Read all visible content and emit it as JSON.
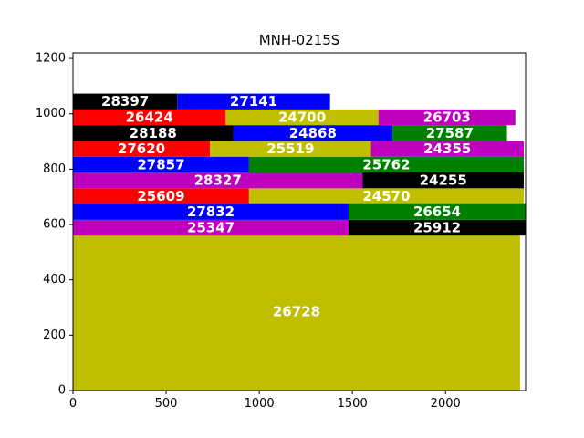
{
  "chart_data": {
    "type": "bar",
    "title": "MNH-0215S",
    "xlabel": "",
    "ylabel": "",
    "xlim": [
      0,
      2430
    ],
    "ylim": [
      0,
      1220
    ],
    "xticks": [
      0,
      500,
      1000,
      1500,
      2000
    ],
    "yticks": [
      0,
      200,
      400,
      600,
      800,
      1000,
      1200
    ],
    "grid": false,
    "colors": {
      "olive": "#bfbf00",
      "black": "#000000",
      "blue": "#0000ff",
      "red": "#ff0000",
      "green": "#008000",
      "magenta": "#bf00bf"
    },
    "rectangles": [
      {
        "label": "26728",
        "x": 0,
        "y": 0,
        "width": 2400,
        "height": 570,
        "color": "olive"
      },
      {
        "label": "25347",
        "x": 0,
        "y": 560,
        "width": 1480,
        "height": 57,
        "color": "magenta"
      },
      {
        "label": "25912",
        "x": 1480,
        "y": 560,
        "width": 950,
        "height": 57,
        "color": "black"
      },
      {
        "label": "27832",
        "x": 0,
        "y": 617,
        "width": 1480,
        "height": 57,
        "color": "blue"
      },
      {
        "label": "26654",
        "x": 1480,
        "y": 617,
        "width": 950,
        "height": 57,
        "color": "green"
      },
      {
        "label": "25609",
        "x": 0,
        "y": 674,
        "width": 945,
        "height": 57,
        "color": "red"
      },
      {
        "label": "24570",
        "x": 945,
        "y": 674,
        "width": 1475,
        "height": 57,
        "color": "olive"
      },
      {
        "label": "28327",
        "x": 0,
        "y": 731,
        "width": 1555,
        "height": 57,
        "color": "magenta"
      },
      {
        "label": "24255",
        "x": 1555,
        "y": 731,
        "width": 865,
        "height": 57,
        "color": "black"
      },
      {
        "label": "27857",
        "x": 0,
        "y": 788,
        "width": 945,
        "height": 57,
        "color": "blue"
      },
      {
        "label": "25762",
        "x": 945,
        "y": 788,
        "width": 1475,
        "height": 57,
        "color": "green"
      },
      {
        "label": "27620",
        "x": 0,
        "y": 845,
        "width": 735,
        "height": 57,
        "color": "red"
      },
      {
        "label": "25519",
        "x": 735,
        "y": 845,
        "width": 865,
        "height": 57,
        "color": "olive"
      },
      {
        "label": "24355",
        "x": 1600,
        "y": 845,
        "width": 820,
        "height": 57,
        "color": "magenta"
      },
      {
        "label": "28188",
        "x": 0,
        "y": 902,
        "width": 860,
        "height": 57,
        "color": "black"
      },
      {
        "label": "24868",
        "x": 860,
        "y": 902,
        "width": 855,
        "height": 57,
        "color": "blue"
      },
      {
        "label": "27587",
        "x": 1715,
        "y": 902,
        "width": 615,
        "height": 57,
        "color": "green"
      },
      {
        "label": "26424",
        "x": 0,
        "y": 959,
        "width": 820,
        "height": 57,
        "color": "red"
      },
      {
        "label": "24700",
        "x": 820,
        "y": 959,
        "width": 820,
        "height": 57,
        "color": "olive"
      },
      {
        "label": "26703",
        "x": 1640,
        "y": 959,
        "width": 735,
        "height": 57,
        "color": "magenta"
      },
      {
        "label": "28397",
        "x": 0,
        "y": 1016,
        "width": 560,
        "height": 57,
        "color": "black"
      },
      {
        "label": "27141",
        "x": 560,
        "y": 1016,
        "width": 820,
        "height": 57,
        "color": "blue"
      }
    ]
  }
}
